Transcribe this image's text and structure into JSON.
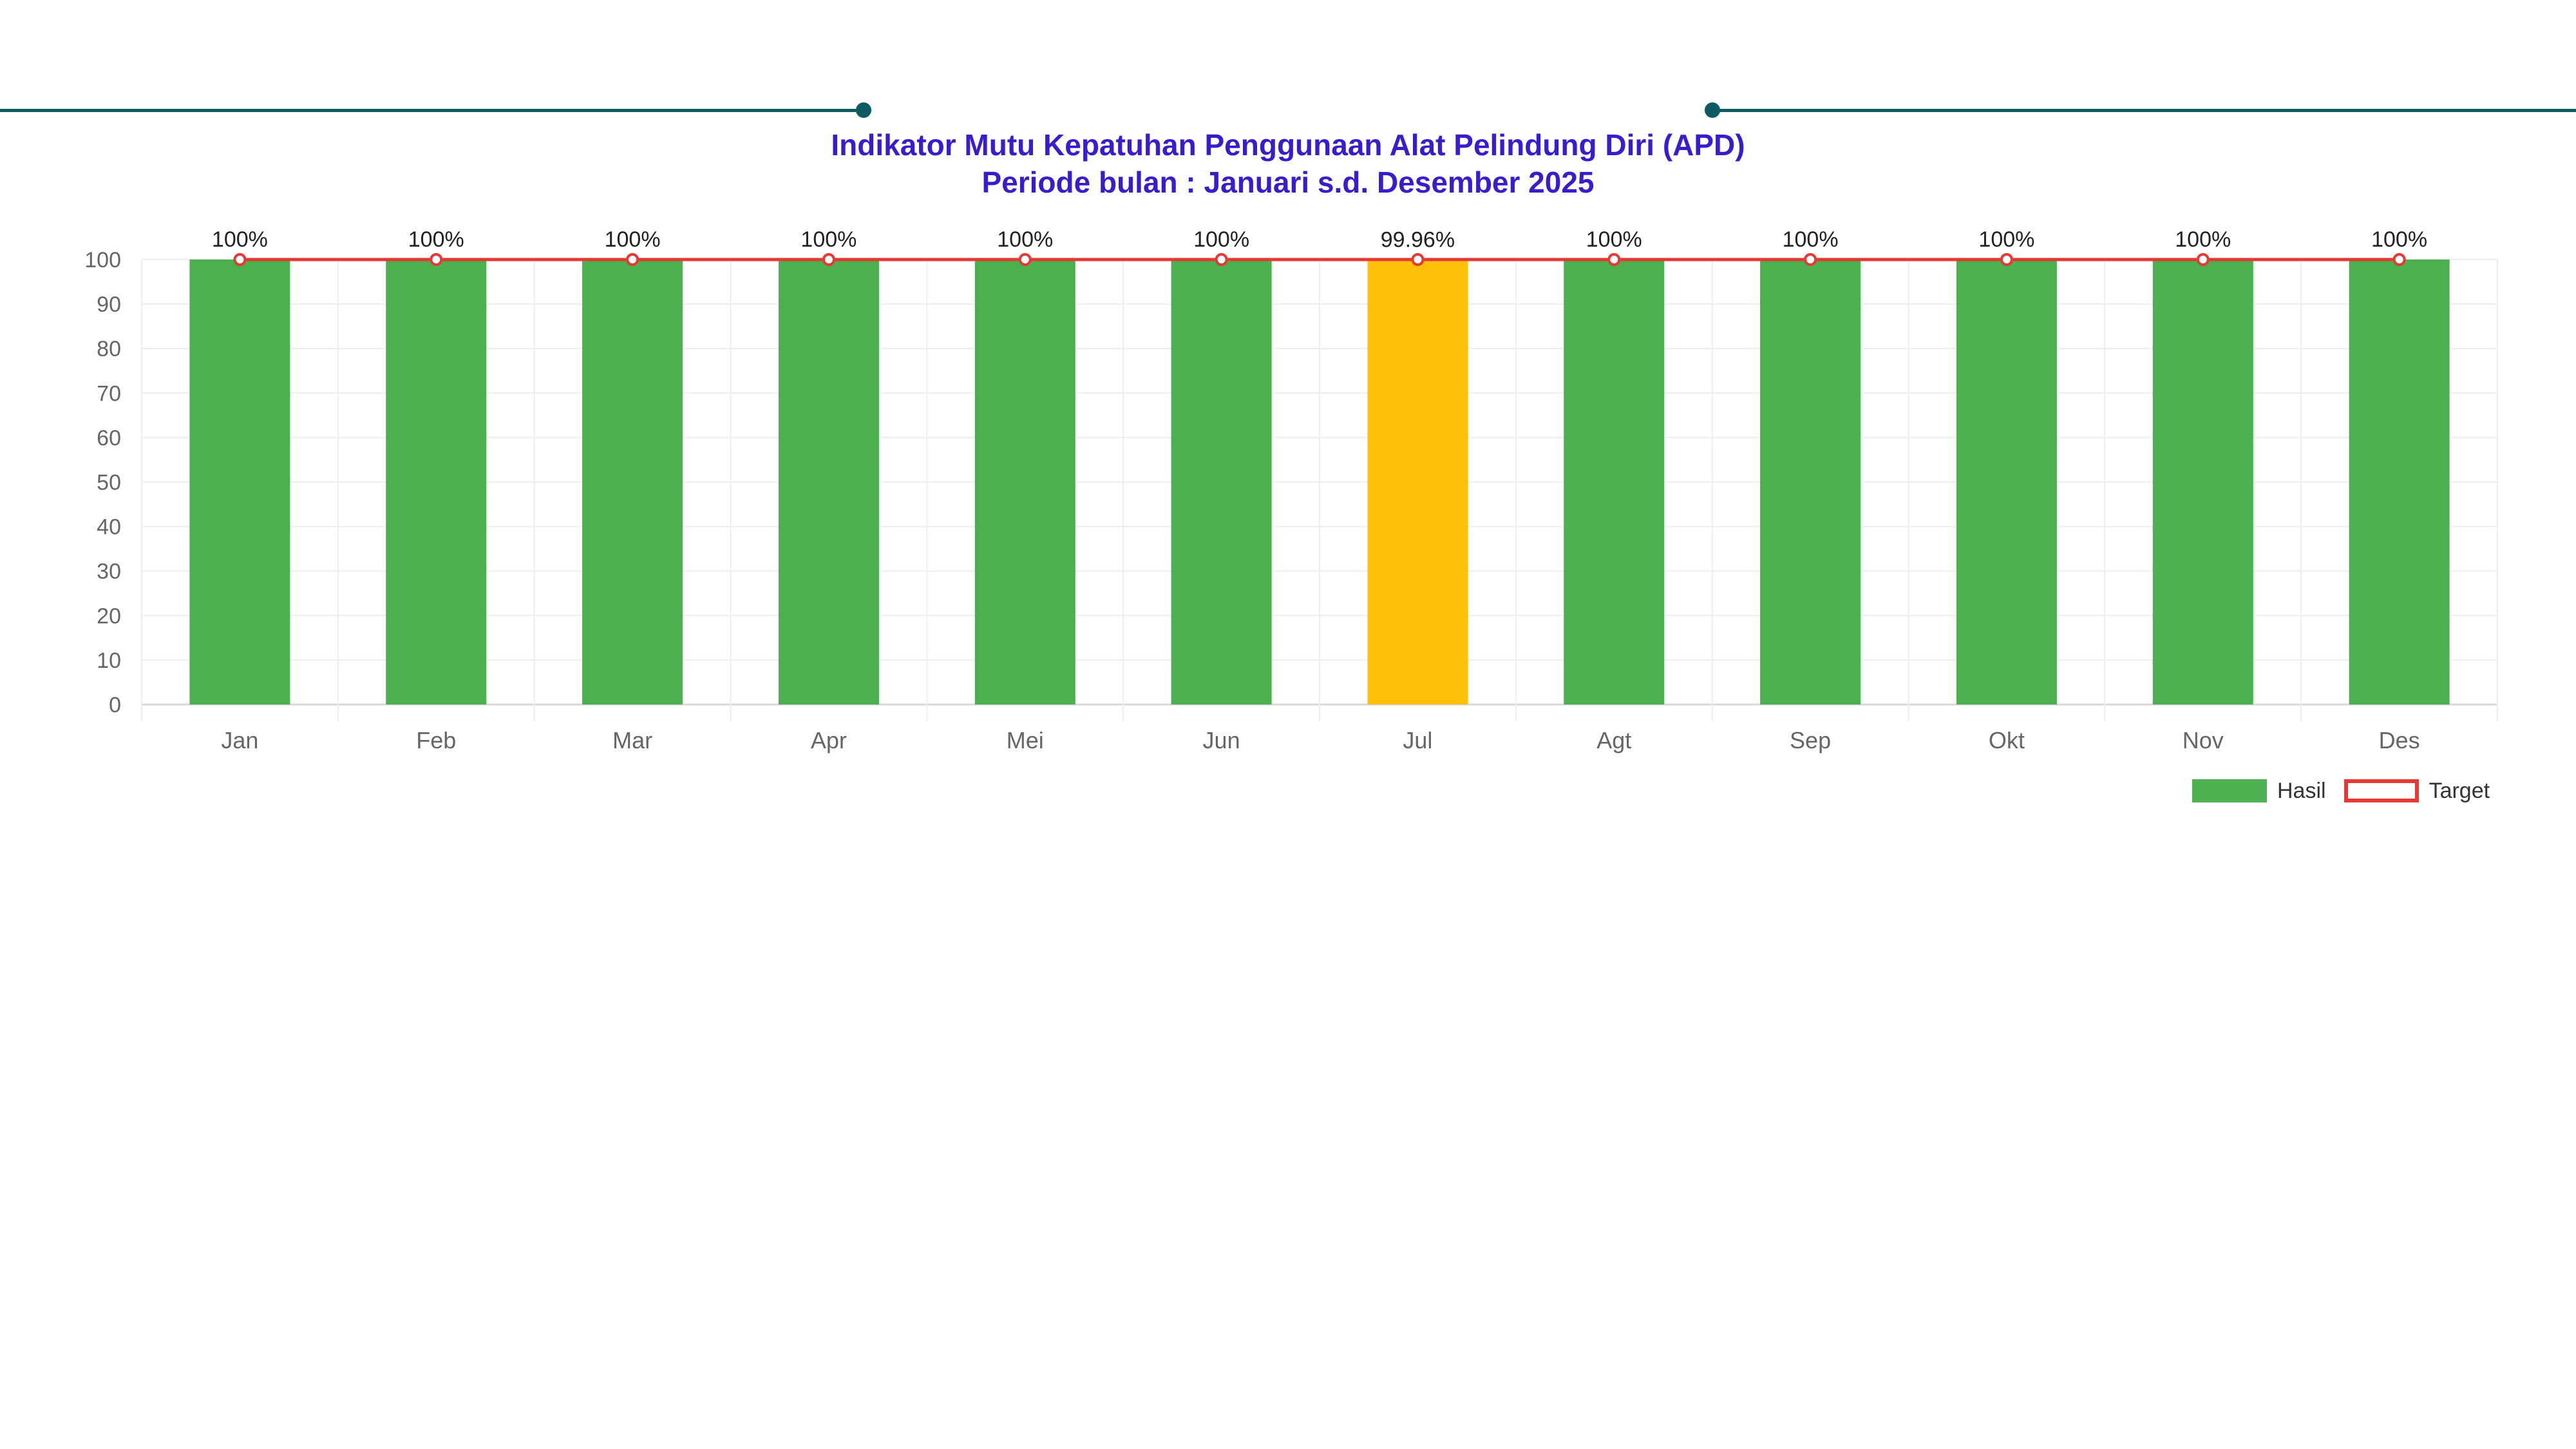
{
  "colors": {
    "decor": "#0d5c63",
    "title": "#3a1ccf",
    "bar_default": "#4caf50",
    "bar_highlight": "#ffc107",
    "target_line": "#e53935",
    "grid": "#eeeeee",
    "tick_text": "#666666",
    "label_text": "#222222"
  },
  "chart_data": {
    "type": "bar",
    "title": "Indikator Mutu Kepatuhan Penggunaan Alat Pelindung Diri (APD)",
    "subtitle": "Periode bulan : Januari s.d. Desember 2025",
    "categories": [
      "Jan",
      "Feb",
      "Mar",
      "Apr",
      "Mei",
      "Jun",
      "Jul",
      "Agt",
      "Sep",
      "Okt",
      "Nov",
      "Des"
    ],
    "series": [
      {
        "name": "Hasil",
        "type": "bar",
        "values": [
          100,
          100,
          100,
          100,
          100,
          100,
          99.96,
          100,
          100,
          100,
          100,
          100
        ],
        "data_labels": [
          "100%",
          "100%",
          "100%",
          "100%",
          "100%",
          "100%",
          "99.96%",
          "100%",
          "100%",
          "100%",
          "100%",
          "100%"
        ],
        "highlight_index": 6
      },
      {
        "name": "Target",
        "type": "line",
        "values": [
          100,
          100,
          100,
          100,
          100,
          100,
          100,
          100,
          100,
          100,
          100,
          100
        ]
      }
    ],
    "ylim": [
      0,
      100
    ],
    "yticks": [
      "0",
      "10",
      "20",
      "30",
      "40",
      "50",
      "60",
      "70",
      "80",
      "90",
      "100"
    ],
    "grid": true,
    "legend": "bottom-right"
  }
}
